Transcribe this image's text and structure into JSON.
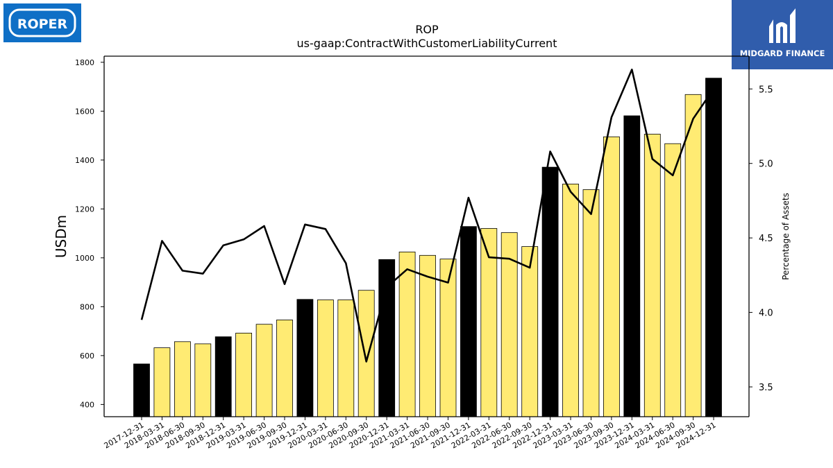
{
  "logos": {
    "left_text": "ROPER",
    "right_text": "MIDGARD FINANCE"
  },
  "colors": {
    "bar_annual": "#000000",
    "bar_quarter": "#ffeb73",
    "line": "#000000",
    "logo_left_bg": "#0f6fc6",
    "logo_right_bg": "#2b58a8"
  },
  "chart_data": {
    "type": "bar",
    "title": "ROP",
    "subtitle": "us-gaap:ContractWithCustomerLiabilityCurrent",
    "ylabel": "USDm",
    "ylabel_right": "Percentage of Assets",
    "ylim": [
      350,
      1825
    ],
    "ylim_right": [
      3.3,
      5.72
    ],
    "yticks": [
      400,
      600,
      800,
      1000,
      1200,
      1400,
      1600,
      1800
    ],
    "yticks_right": [
      "3.5",
      "4.0",
      "4.5",
      "5.0",
      "5.5"
    ],
    "categories": [
      "2017-12-31",
      "2018-03-31",
      "2018-06-30",
      "2018-09-30",
      "2018-12-31",
      "2019-03-31",
      "2019-06-30",
      "2019-09-30",
      "2019-12-31",
      "2020-03-31",
      "2020-06-30",
      "2020-09-30",
      "2020-12-31",
      "2021-03-31",
      "2021-06-30",
      "2021-09-30",
      "2021-12-31",
      "2022-03-31",
      "2022-06-30",
      "2022-09-30",
      "2022-12-31",
      "2023-03-31",
      "2023-06-30",
      "2023-09-30",
      "2023-12-31",
      "2024-03-31",
      "2024-06-30",
      "2024-09-30",
      "2024-12-31"
    ],
    "series": [
      {
        "type": "bar",
        "values": [
          566,
          632,
          657,
          648,
          677,
          692,
          728,
          746,
          830,
          828,
          828,
          867,
          993,
          1024,
          1010,
          995,
          1128,
          1120,
          1103,
          1046,
          1371,
          1302,
          1279,
          1495,
          1581,
          1506,
          1467,
          1668,
          1735
        ],
        "annual_flags": [
          true,
          false,
          false,
          false,
          true,
          false,
          false,
          false,
          true,
          false,
          false,
          false,
          true,
          false,
          false,
          false,
          true,
          false,
          false,
          false,
          true,
          false,
          false,
          false,
          true,
          false,
          false,
          false,
          true
        ]
      },
      {
        "type": "line",
        "axis": "right",
        "values": [
          3.95,
          4.48,
          4.28,
          4.26,
          4.45,
          4.49,
          4.58,
          4.19,
          4.59,
          4.56,
          4.33,
          3.67,
          4.17,
          4.29,
          4.24,
          4.2,
          4.77,
          4.37,
          4.36,
          4.3,
          5.08,
          4.81,
          4.66,
          5.31,
          5.63,
          5.03,
          4.92,
          5.3,
          5.5
        ]
      }
    ],
    "grid": false,
    "legend": "none"
  }
}
